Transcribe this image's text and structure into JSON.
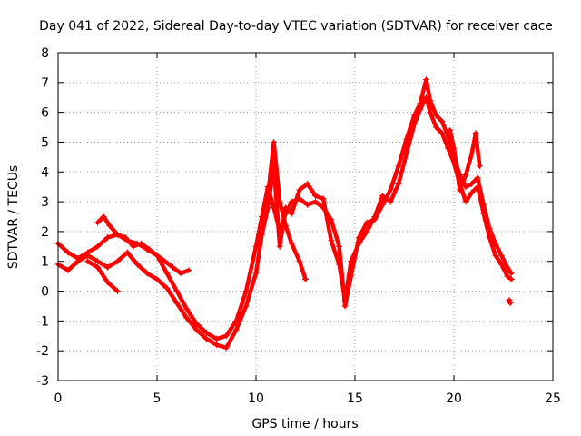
{
  "chart_data": {
    "type": "scatter",
    "title": "Day 041 of 2022, Sidereal Day-to-day VTEC variation (SDTVAR) for receiver cace",
    "xlabel": "GPS time / hours",
    "ylabel": "SDTVAR / TECUs",
    "xlim": [
      0,
      25
    ],
    "ylim": [
      -3,
      8
    ],
    "x_ticks": [
      "0",
      "5",
      "10",
      "15",
      "20",
      "25"
    ],
    "y_ticks": [
      "-3",
      "-2",
      "-1",
      "0",
      "1",
      "2",
      "3",
      "4",
      "5",
      "6",
      "7",
      "8"
    ],
    "grid": true,
    "marker": "+",
    "color": "#ff0000",
    "series": [
      {
        "x": [
          0.0,
          0.5,
          1.0,
          1.5,
          2.0,
          2.5,
          3.0,
          3.5,
          4.0,
          4.5,
          5.0,
          5.5,
          6.0,
          6.5,
          7.0,
          7.5,
          8.0,
          8.5,
          9.0,
          9.5,
          10.0,
          10.3,
          10.6,
          10.9,
          11.2,
          11.5,
          11.8,
          12.2,
          12.6,
          13.0,
          13.4,
          13.8,
          14.2,
          14.5,
          14.8,
          15.2,
          15.6,
          16.0,
          16.4,
          16.8,
          17.2,
          17.6,
          18.0,
          18.3,
          18.6,
          18.8,
          19.1,
          19.4,
          19.7,
          20.0,
          20.3,
          20.6,
          20.9,
          21.2,
          21.5,
          21.8,
          22.1,
          22.4,
          22.7,
          22.9
        ],
        "y": [
          1.6,
          1.3,
          1.1,
          1.3,
          1.5,
          1.8,
          1.9,
          1.7,
          1.6,
          1.4,
          1.2,
          0.6,
          0.0,
          -0.6,
          -1.1,
          -1.4,
          -1.6,
          -1.5,
          -1.0,
          0.0,
          1.5,
          2.5,
          3.5,
          2.8,
          2.0,
          2.6,
          3.0,
          3.1,
          2.9,
          3.0,
          2.8,
          2.4,
          1.5,
          -0.5,
          0.5,
          1.8,
          2.3,
          2.4,
          2.9,
          3.4,
          4.2,
          5.1,
          5.9,
          6.3,
          7.1,
          6.4,
          5.9,
          5.7,
          5.2,
          4.5,
          3.9,
          3.5,
          3.6,
          3.8,
          2.9,
          2.1,
          1.6,
          1.2,
          0.8,
          0.6
        ]
      },
      {
        "x": [
          0.0,
          0.5,
          1.0,
          1.5,
          2.0,
          2.5,
          3.0,
          3.5,
          4.0,
          4.5,
          5.0,
          5.5,
          6.0,
          6.5,
          7.0,
          7.5,
          8.0,
          8.5,
          9.0,
          9.5,
          10.0,
          10.3,
          10.6,
          10.9,
          11.2,
          11.5,
          11.8,
          12.2,
          12.6,
          13.0,
          13.4,
          13.8,
          14.2,
          14.5,
          14.8,
          15.2,
          15.6,
          16.0,
          16.4,
          16.8,
          17.2,
          17.6,
          18.0,
          18.3,
          18.6,
          18.8,
          19.1,
          19.4,
          19.7,
          20.0,
          20.3,
          20.6,
          20.9,
          21.2,
          21.5,
          21.8,
          22.1,
          22.4,
          22.7,
          22.9
        ],
        "y": [
          0.9,
          0.7,
          1.0,
          1.2,
          1.0,
          0.8,
          1.0,
          1.3,
          0.9,
          0.6,
          0.4,
          0.1,
          -0.4,
          -0.9,
          -1.3,
          -1.6,
          -1.8,
          -1.9,
          -1.3,
          -0.5,
          0.6,
          1.9,
          2.8,
          4.2,
          1.5,
          2.8,
          2.6,
          3.4,
          3.6,
          3.2,
          3.1,
          1.7,
          0.9,
          -0.3,
          1.0,
          1.6,
          2.0,
          2.5,
          3.2,
          3.0,
          3.6,
          4.6,
          5.6,
          6.1,
          6.5,
          6.0,
          5.5,
          5.3,
          4.8,
          4.3,
          3.6,
          3.0,
          3.3,
          3.5,
          2.6,
          1.8,
          1.2,
          0.9,
          0.5,
          0.4
        ]
      },
      {
        "x": [
          2.0,
          2.3,
          2.6,
          3.0,
          3.4,
          3.8,
          4.2,
          4.6,
          5.0,
          5.4,
          5.8,
          6.2,
          6.6
        ],
        "y": [
          2.3,
          2.5,
          2.2,
          1.9,
          1.8,
          1.5,
          1.6,
          1.4,
          1.2,
          1.0,
          0.8,
          0.6,
          0.7
        ]
      },
      {
        "x": [
          1.5,
          2.0,
          2.5,
          3.0
        ],
        "y": [
          1.0,
          0.8,
          0.3,
          0.0
        ]
      },
      {
        "x": [
          10.6,
          10.9,
          11.2,
          11.5,
          11.8,
          12.2,
          12.5
        ],
        "y": [
          3.2,
          5.0,
          3.0,
          2.2,
          1.6,
          1.0,
          0.4
        ]
      },
      {
        "x": [
          19.8,
          20.0,
          20.3,
          20.6,
          20.9,
          21.1,
          21.3
        ],
        "y": [
          5.4,
          4.8,
          3.4,
          3.9,
          4.6,
          5.3,
          4.2
        ]
      },
      {
        "x": [
          22.8,
          22.85
        ],
        "y": [
          -0.3,
          -0.4
        ]
      }
    ]
  }
}
